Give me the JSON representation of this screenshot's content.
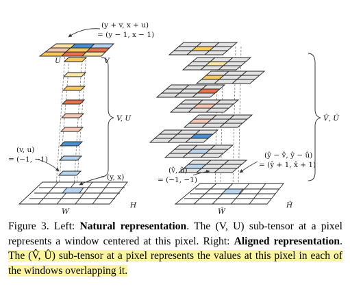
{
  "figure": {
    "left": {
      "top_annot_1": "(y + v, x + u)",
      "top_annot_2": "= (y − 1, x − 1)",
      "u_label": "U",
      "v_label": "V",
      "vu_label": "V, U",
      "offset_annot_1": "(v, u)",
      "offset_annot_2": "= (−1, −1)",
      "yx_label": "(y, x)",
      "w_label": "W",
      "h_label": "H"
    },
    "right": {
      "vu_hat_label": "V̂, Û",
      "annot_1": "(ŷ − v̂, ŷ − û)",
      "annot_2": "= (ŷ + 1, x̂ + 1)",
      "offset_annot_1": "(v̂, û)",
      "offset_annot_2": "= (−1, −1)",
      "w_label": "Ŵ",
      "h_label": "Ĥ"
    },
    "colors": {
      "blue": "#4a8fd0",
      "light_blue": "#b9d4ee",
      "orange": "#e8744e",
      "light_orange": "#f7c9b4",
      "yellow": "#f5c95c",
      "light_yellow": "#fbe5a7",
      "gray_cell": "#e2e2e2",
      "highlight": "#fbf4a0"
    }
  },
  "caption": {
    "fig_label": "Figure 3. Left: ",
    "natural_title": "Natural representation",
    "text_1": ". The (V, U) sub-tensor at a pixel represents a window centered at this pixel. Right: ",
    "aligned_title": "Aligned representation",
    "text_2": ". ",
    "highlighted": "The (V̂, Û) sub-tensor at a pixel represents the values at this pixel in each of the windows overlapping it."
  }
}
